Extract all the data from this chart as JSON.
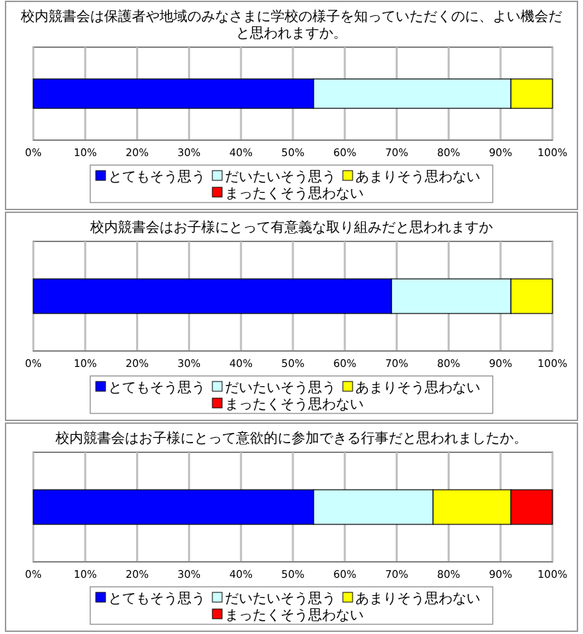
{
  "chart_data": [
    {
      "type": "bar",
      "title": "校内競書会は保護者や地域のみなさまに学校の様子を知っていただくのに、よい機会だと思われますか。",
      "categories": [
        null
      ],
      "orientation": "horizontal",
      "stacked": true,
      "xlim": [
        0,
        100
      ],
      "xticks": [
        {
          "value": 0,
          "label": "0%"
        },
        {
          "value": 10,
          "label": "10%"
        },
        {
          "value": 20,
          "label": "20%"
        },
        {
          "value": 30,
          "label": "30%"
        },
        {
          "value": 40,
          "label": "40%"
        },
        {
          "value": 50,
          "label": "50%"
        },
        {
          "value": 60,
          "label": "60%"
        },
        {
          "value": 70,
          "label": "70%"
        },
        {
          "value": 80,
          "label": "80%"
        },
        {
          "value": 90,
          "label": "90%"
        },
        {
          "value": 100,
          "label": "100%"
        }
      ],
      "grid": "x",
      "legend": "bottom",
      "series": [
        {
          "name": "とてもそう思う",
          "color": "#0000ff",
          "values": [
            54
          ]
        },
        {
          "name": "だいたいそう思う",
          "color": "#ccffff",
          "values": [
            38
          ]
        },
        {
          "name": "あまりそう思わない",
          "color": "#ffff00",
          "values": [
            8
          ]
        },
        {
          "name": "まったくそう思わない",
          "color": "#ff0000",
          "values": [
            0
          ]
        }
      ]
    },
    {
      "type": "bar",
      "title": "校内競書会はお子様にとって有意義な取り組みだと思われますか",
      "categories": [
        null
      ],
      "orientation": "horizontal",
      "stacked": true,
      "xlim": [
        0,
        100
      ],
      "xticks": [
        {
          "value": 0,
          "label": "0%"
        },
        {
          "value": 10,
          "label": "10%"
        },
        {
          "value": 20,
          "label": "20%"
        },
        {
          "value": 30,
          "label": "30%"
        },
        {
          "value": 40,
          "label": "40%"
        },
        {
          "value": 50,
          "label": "50%"
        },
        {
          "value": 60,
          "label": "60%"
        },
        {
          "value": 70,
          "label": "70%"
        },
        {
          "value": 80,
          "label": "80%"
        },
        {
          "value": 90,
          "label": "90%"
        },
        {
          "value": 100,
          "label": "100%"
        }
      ],
      "grid": "x",
      "legend": "bottom",
      "series": [
        {
          "name": "とてもそう思う",
          "color": "#0000ff",
          "values": [
            69
          ]
        },
        {
          "name": "だいたいそう思う",
          "color": "#ccffff",
          "values": [
            23
          ]
        },
        {
          "name": "あまりそう思わない",
          "color": "#ffff00",
          "values": [
            8
          ]
        },
        {
          "name": "まったくそう思わない",
          "color": "#ff0000",
          "values": [
            0
          ]
        }
      ]
    },
    {
      "type": "bar",
      "title": "校内競書会はお子様にとって意欲的に参加できる行事だと思われましたか。",
      "categories": [
        null
      ],
      "orientation": "horizontal",
      "stacked": true,
      "xlim": [
        0,
        100
      ],
      "xticks": [
        {
          "value": 0,
          "label": "0%"
        },
        {
          "value": 10,
          "label": "10%"
        },
        {
          "value": 20,
          "label": "20%"
        },
        {
          "value": 30,
          "label": "30%"
        },
        {
          "value": 40,
          "label": "40%"
        },
        {
          "value": 50,
          "label": "50%"
        },
        {
          "value": 60,
          "label": "60%"
        },
        {
          "value": 70,
          "label": "70%"
        },
        {
          "value": 80,
          "label": "80%"
        },
        {
          "value": 90,
          "label": "90%"
        },
        {
          "value": 100,
          "label": "100%"
        }
      ],
      "grid": "x",
      "legend": "bottom",
      "series": [
        {
          "name": "とてもそう思う",
          "color": "#0000ff",
          "values": [
            54
          ]
        },
        {
          "name": "だいたいそう思う",
          "color": "#ccffff",
          "values": [
            23
          ]
        },
        {
          "name": "あまりそう思わない",
          "color": "#ffff00",
          "values": [
            15
          ]
        },
        {
          "name": "まったくそう思わない",
          "color": "#ff0000",
          "values": [
            8
          ]
        }
      ]
    }
  ]
}
